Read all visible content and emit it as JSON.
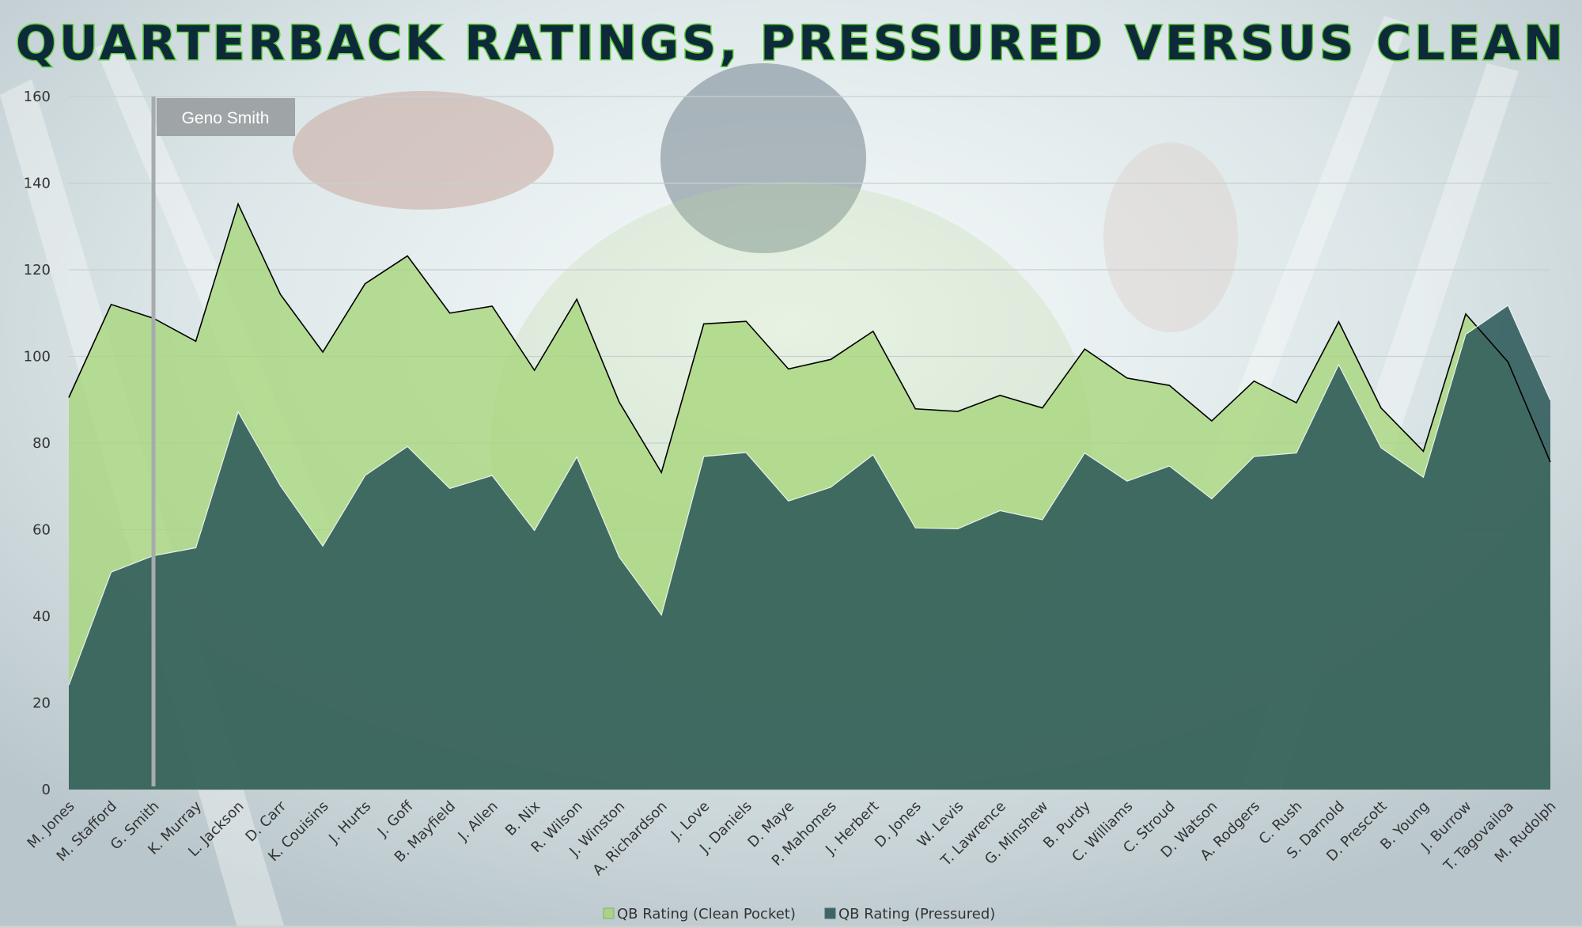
{
  "chart_data": {
    "type": "area",
    "title": "QUARTERBACK RATINGS, PRESSURED VERSUS CLEAN",
    "categories": [
      "M. Jones",
      "M. Stafford",
      "G. Smith",
      "K. Murray",
      "L. Jackson",
      "D. Carr",
      "K. Couisins",
      "J. Hurts",
      "J. Goff",
      "B. Mayfield",
      "J. Allen",
      "B. Nix",
      "R. Wilson",
      "J. Winston",
      "A. Richardson",
      "J. Love",
      "J. Daniels",
      "D. Maye",
      "P. Mahomes",
      "J. Herbert",
      "D. Jones",
      "W. Levis",
      "T. Lawrence",
      "G. Minshew",
      "B. Purdy",
      "C. Williams",
      "C. Stroud",
      "D. Watson",
      "A. Rodgers",
      "C. Rush",
      "S. Darnold",
      "D. Prescott",
      "B. Young",
      "J. Burrow",
      "T. Tagovailoa",
      "M. Rudolph"
    ],
    "series": [
      {
        "name": "QB Rating (Clean Pocket)",
        "color": "#a6d67a",
        "values": [
          90.5,
          112,
          108.8,
          103.5,
          135.2,
          114.3,
          101,
          116.8,
          123.2,
          110,
          111.6,
          96.8,
          113.2,
          89.5,
          73.2,
          107.5,
          108.1,
          97.1,
          99.3,
          105.8,
          87.9,
          87.3,
          91,
          88.1,
          101.7,
          95,
          93.3,
          85.1,
          94.3,
          89.3,
          108,
          88.1,
          78.1,
          109.8,
          98.7,
          75.6
        ]
      },
      {
        "name": "QB Rating (Pressured)",
        "color": "#2f5a5a",
        "values": [
          24.1,
          50.2,
          54,
          55.8,
          87.2,
          70.1,
          56.2,
          72.5,
          79.2,
          69.5,
          72.5,
          59.8,
          76.8,
          53.7,
          40.3,
          76.9,
          77.8,
          66.6,
          69.8,
          77.3,
          60.4,
          60.2,
          64.4,
          62.3,
          77.7,
          71.2,
          74.7,
          67.1,
          76.9,
          77.7,
          98.1,
          78.9,
          72.1,
          105.1,
          111.8,
          89.9
        ]
      }
    ],
    "ylim": [
      0,
      160
    ],
    "yticks": [
      0,
      20,
      40,
      60,
      80,
      100,
      120,
      140,
      160
    ],
    "grid": true,
    "legend": "bottom-center",
    "annotation": {
      "label": "Geno Smith",
      "category": "G. Smith"
    }
  }
}
